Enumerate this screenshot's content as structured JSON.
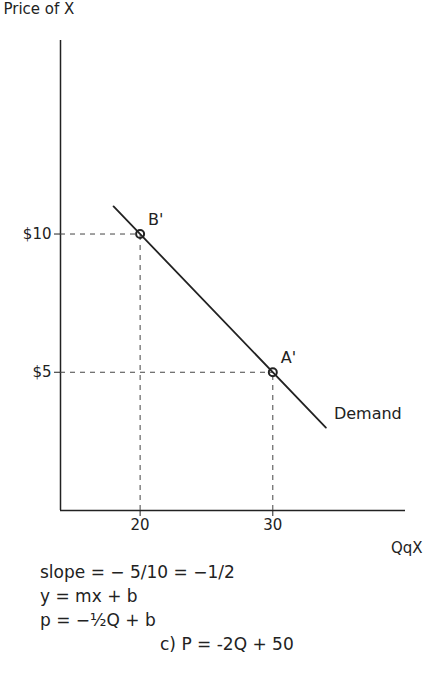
{
  "chart_data": {
    "type": "line",
    "x_label": "QqX",
    "y_label": "Price of X",
    "xlim": [
      14,
      40
    ],
    "ylim": [
      0,
      17
    ],
    "xticks": [
      20,
      30
    ],
    "yticks": [
      {
        "value": 5,
        "label": "$5"
      },
      {
        "value": 10,
        "label": "$10"
      }
    ],
    "grid": false,
    "series": [
      {
        "name": "Demand",
        "color": "#222222",
        "x": [
          18,
          34
        ],
        "values": [
          11,
          3
        ]
      }
    ],
    "points": [
      {
        "label": "B'",
        "x": 20,
        "y": 10
      },
      {
        "label": "A'",
        "x": 30,
        "y": 5
      }
    ],
    "annotations": [
      "slope = − 5/10 = −1/2",
      "y = mx + b",
      "p = −½Q + b",
      "c) P = -2Q + 50"
    ]
  }
}
